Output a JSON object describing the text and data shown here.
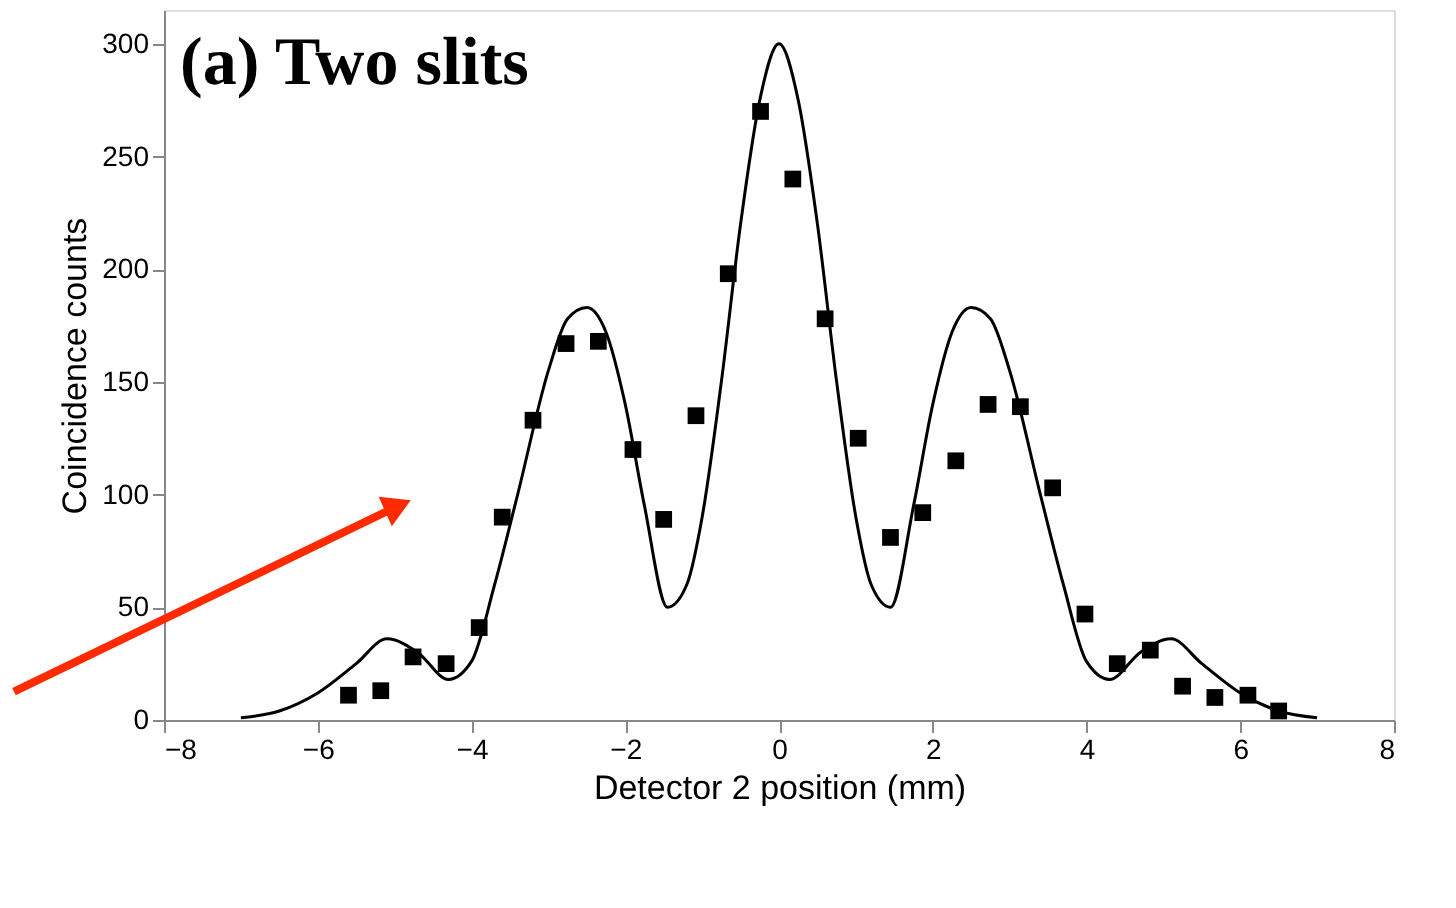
{
  "chart_data": {
    "type": "scatter",
    "xlabel": "Detector 2 position (mm)",
    "ylabel": "Coincidence counts",
    "annotations": [
      "(a) Two slits"
    ],
    "series": [
      {
        "color": "#000000",
        "marker": "square",
        "x": [
          -5.6,
          -5.18,
          -4.76,
          -4.33,
          -3.9,
          -3.6,
          -3.2,
          -2.77,
          -2.35,
          -1.9,
          -1.5,
          -1.08,
          -0.66,
          -0.24,
          0.18,
          0.6,
          1.03,
          1.45,
          1.87,
          2.3,
          2.72,
          3.14,
          3.56,
          3.98,
          4.4,
          4.83,
          5.25,
          5.67,
          6.1,
          6.5
        ],
        "values": [
          11,
          13,
          28,
          25,
          41,
          90,
          133,
          167,
          168,
          120,
          89,
          135,
          198,
          270,
          240,
          178,
          125,
          81,
          92,
          115,
          140,
          139,
          103,
          47,
          25,
          31,
          15,
          10,
          11,
          4
        ]
      },
      {
        "type": "line",
        "color": "#000000",
        "marker": "none",
        "line_style": "solid",
        "x": [
          -7,
          -6.5,
          -6,
          -5.5,
          -5.1,
          -4.7,
          -4.3,
          -4,
          -3.7,
          -3.4,
          -3,
          -2.75,
          -2.5,
          -2.25,
          -2,
          -1.75,
          -1.45,
          -1.2,
          -1,
          -0.75,
          -0.5,
          -0.25,
          0,
          0.25,
          0.5,
          0.75,
          1,
          1.2,
          1.45,
          1.75,
          2,
          2.25,
          2.5,
          2.75,
          3,
          3.4,
          3.7,
          4,
          4.3,
          4.7,
          5.1,
          5.5,
          6,
          6.5,
          7
        ],
        "values": [
          1,
          4,
          12,
          25,
          36,
          30,
          18,
          26,
          60,
          100,
          155,
          178,
          183,
          172,
          140,
          95,
          50,
          60,
          90,
          150,
          220,
          275,
          300,
          275,
          220,
          150,
          90,
          60,
          50,
          95,
          140,
          172,
          183,
          178,
          155,
          100,
          60,
          26,
          18,
          30,
          36,
          25,
          12,
          4,
          1
        ]
      }
    ],
    "xlim": [
      -8,
      8
    ],
    "xticks": [
      -8,
      -6,
      -4,
      -2,
      0,
      2,
      4,
      6,
      8
    ],
    "ylim": [
      0,
      315
    ],
    "yticks": [
      0,
      50,
      100,
      150,
      200,
      250,
      300
    ],
    "grid": false
  }
}
